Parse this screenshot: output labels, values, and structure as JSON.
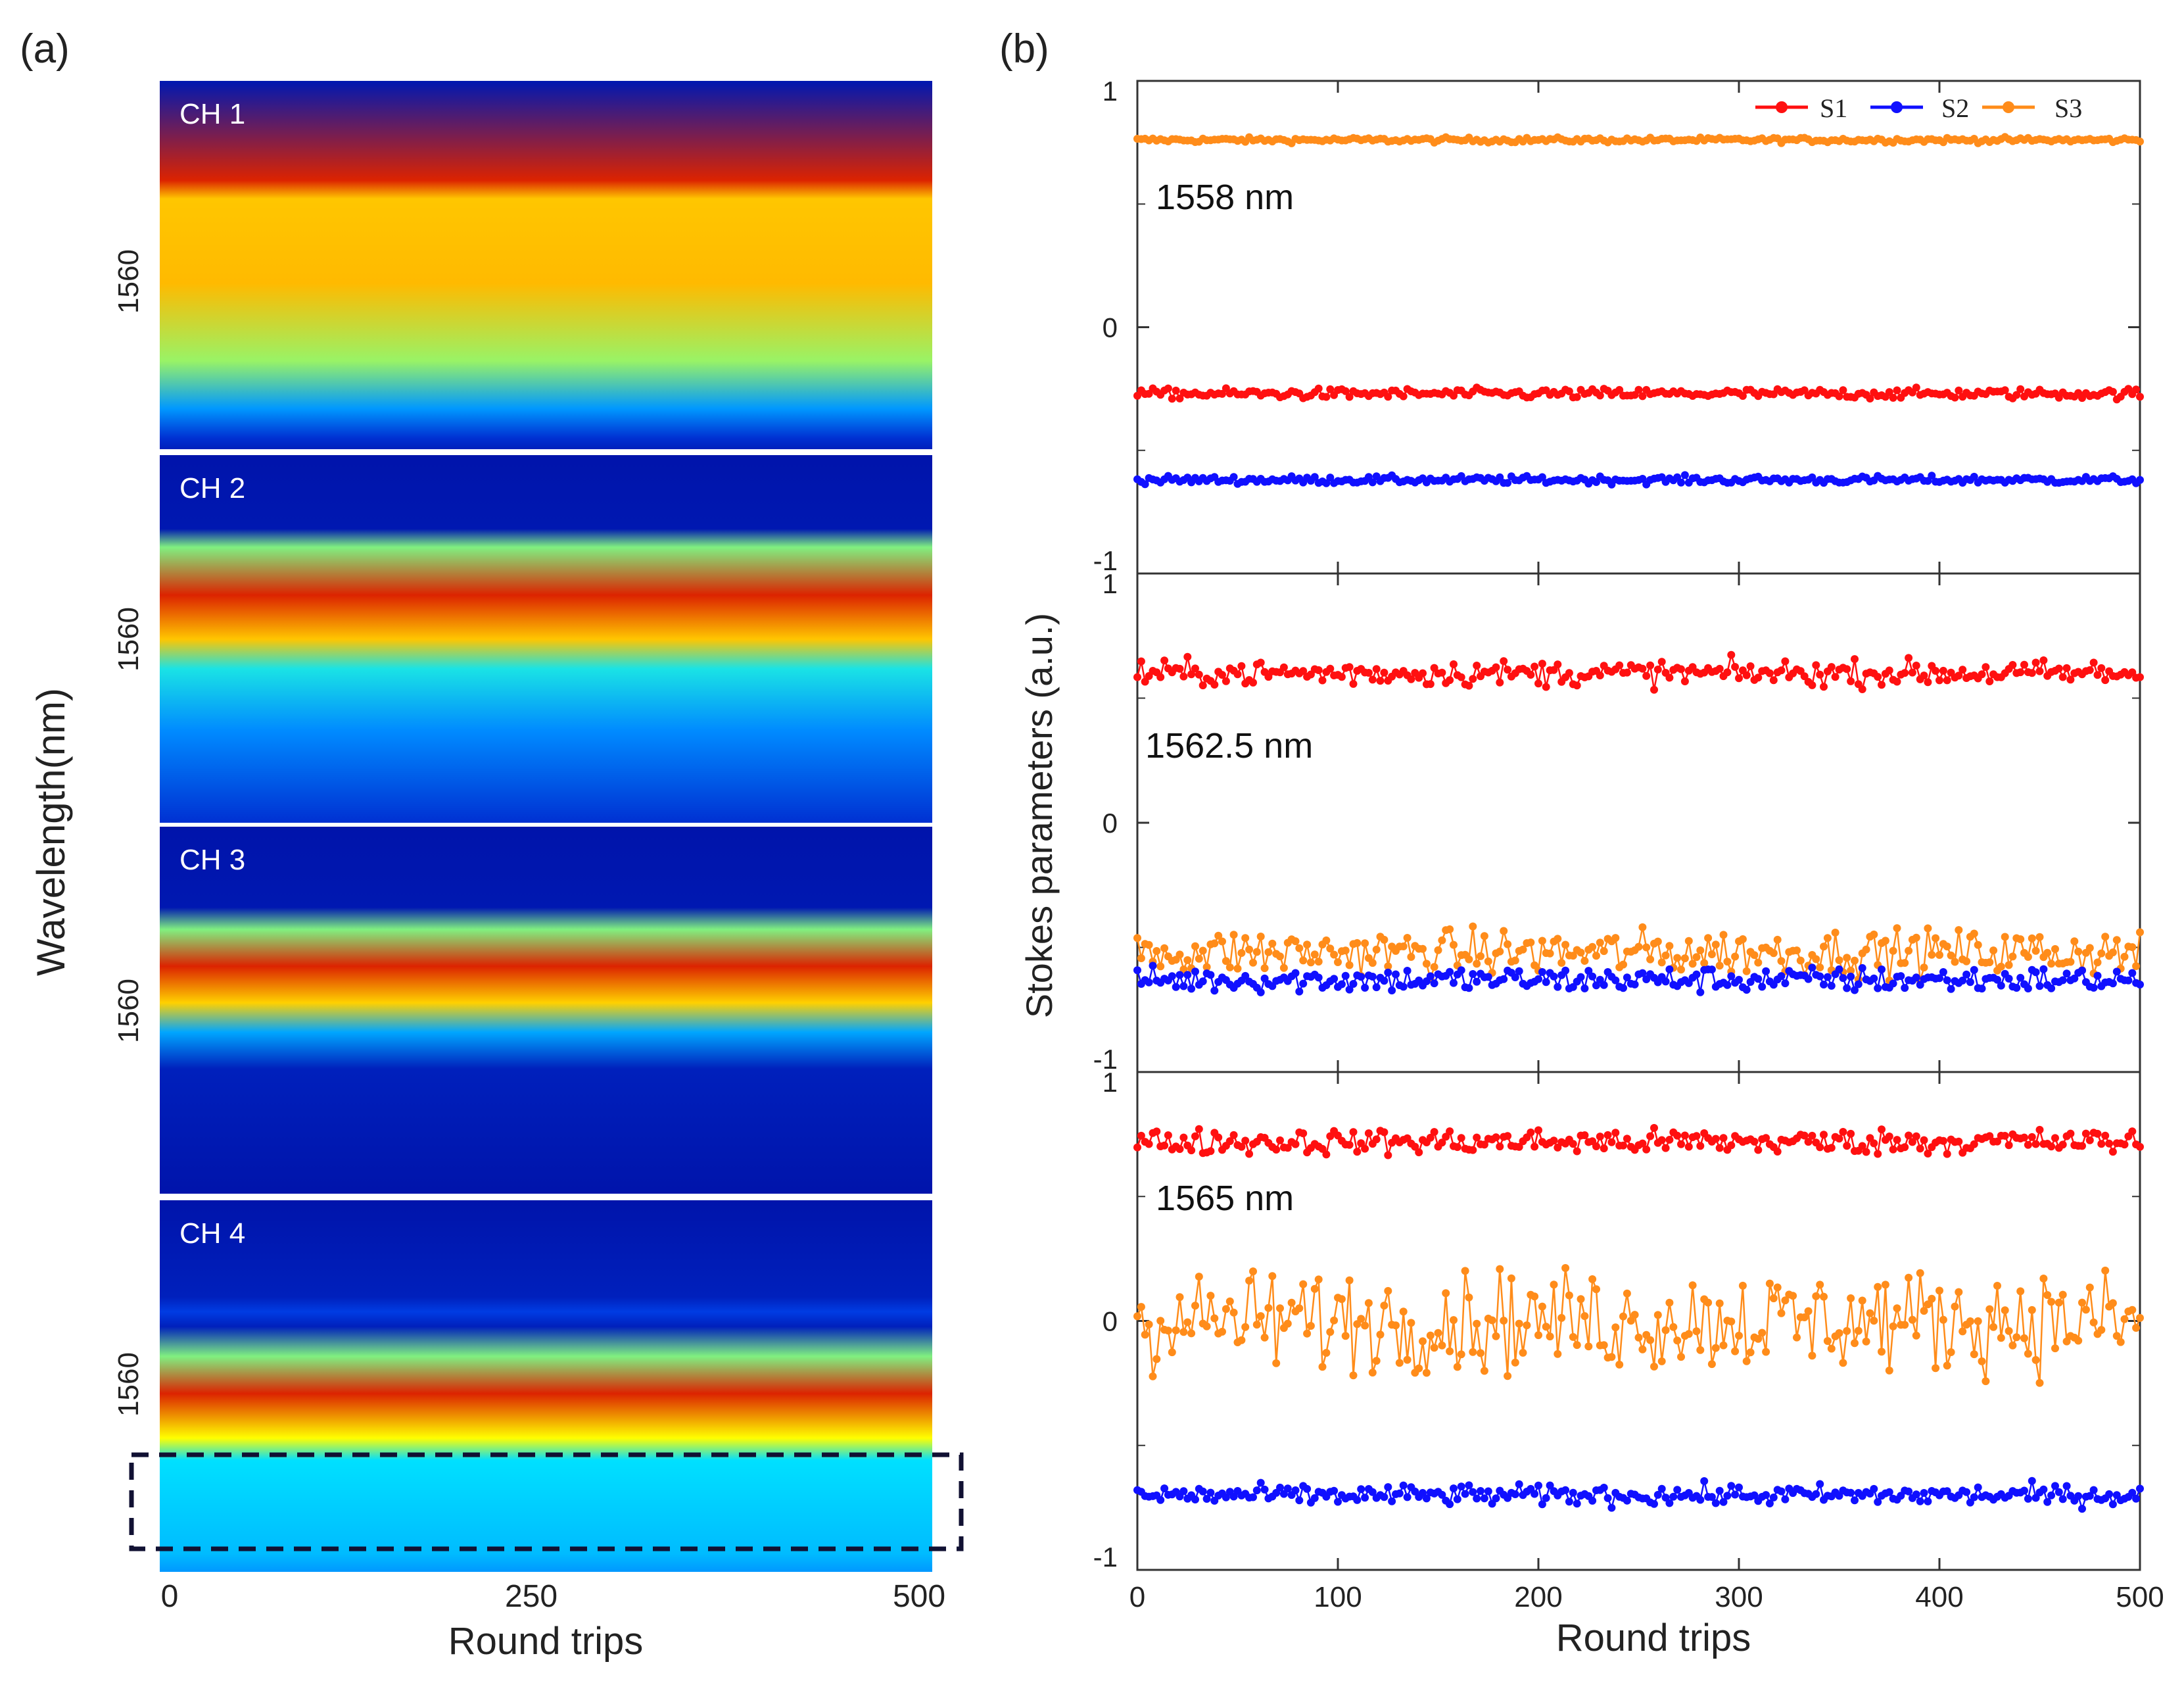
{
  "panel_a": {
    "label": "(a)",
    "ylabel": "Wavelength(nm)",
    "xlabel": "Round trips",
    "x_ticks": [
      "0",
      "250",
      "500"
    ],
    "y_tick": "1560",
    "colormap": [
      "#00008f",
      "#0050ff",
      "#00e0ff",
      "#ffff00",
      "#ff8c00",
      "#d00000"
    ],
    "channels": [
      {
        "name": "CH 1",
        "bands": [
          [
            0.0,
            0.06
          ],
          [
            0.27,
            0.95
          ],
          [
            0.32,
            0.7
          ],
          [
            0.55,
            0.72
          ],
          [
            0.76,
            0.52
          ],
          [
            0.89,
            0.3
          ],
          [
            0.97,
            0.12
          ],
          [
            1.0,
            0.08
          ]
        ]
      },
      {
        "name": "CH 2",
        "bands": [
          [
            0.0,
            0.05
          ],
          [
            0.2,
            0.06
          ],
          [
            0.25,
            0.5
          ],
          [
            0.38,
            0.95
          ],
          [
            0.5,
            0.7
          ],
          [
            0.58,
            0.42
          ],
          [
            0.75,
            0.28
          ],
          [
            1.0,
            0.12
          ]
        ]
      },
      {
        "name": "CH 3",
        "bands": [
          [
            0.0,
            0.05
          ],
          [
            0.22,
            0.06
          ],
          [
            0.28,
            0.5
          ],
          [
            0.38,
            0.95
          ],
          [
            0.48,
            0.68
          ],
          [
            0.56,
            0.32
          ],
          [
            0.66,
            0.08
          ],
          [
            1.0,
            0.05
          ]
        ]
      },
      {
        "name": "CH 4",
        "bands": [
          [
            0.0,
            0.05
          ],
          [
            0.26,
            0.08
          ],
          [
            0.3,
            0.15
          ],
          [
            0.34,
            0.08
          ],
          [
            0.42,
            0.5
          ],
          [
            0.52,
            0.95
          ],
          [
            0.64,
            0.6
          ],
          [
            0.7,
            0.4
          ],
          [
            0.95,
            0.35
          ],
          [
            1.0,
            0.3
          ]
        ]
      }
    ]
  },
  "panel_b": {
    "label": "(b)",
    "ylabel": "Stokes parameters (a.u.)",
    "xlabel": "Round trips",
    "legend": [
      "S1",
      "S2",
      "S3"
    ],
    "colors": {
      "S1": "#ff1010",
      "S2": "#1010ff",
      "S3": "#ff8c1a"
    }
  },
  "chart_data": [
    {
      "type": "heatmap",
      "title": "(a)",
      "xlabel": "Round trips",
      "ylabel": "Wavelength(nm)",
      "x_ticks": [
        0,
        250,
        500
      ],
      "xlim": [
        0,
        500
      ],
      "y_tick_label": "1560",
      "panels": [
        "CH 1",
        "CH 2",
        "CH 3",
        "CH 4"
      ],
      "annotation": "dashed box around lower band of CH 4"
    },
    {
      "type": "scatter",
      "title": "(b)",
      "xlabel": "Round trips",
      "ylabel": "Stokes parameters (a.u.)",
      "xlim": [
        0,
        500
      ],
      "ylim": [
        -1,
        1
      ],
      "x_ticks": [
        0,
        100,
        200,
        300,
        400,
        500
      ],
      "y_ticks": [
        -1,
        0,
        1
      ],
      "panels": [
        {
          "wavelength": "1558 nm",
          "series": [
            {
              "name": "S1",
              "mean": -0.27,
              "spread": 0.02
            },
            {
              "name": "S2",
              "mean": -0.62,
              "spread": 0.015
            },
            {
              "name": "S3",
              "mean": 0.76,
              "spread": 0.01
            }
          ]
        },
        {
          "wavelength": "1562.5 nm",
          "series": [
            {
              "name": "S1",
              "mean": 0.6,
              "spread": 0.05
            },
            {
              "name": "S2",
              "mean": -0.63,
              "spread": 0.05
            },
            {
              "name": "S3",
              "mean": -0.52,
              "spread": 0.09
            }
          ]
        },
        {
          "wavelength": "1565 nm",
          "series": [
            {
              "name": "S1",
              "mean": 0.72,
              "spread": 0.05
            },
            {
              "name": "S2",
              "mean": -0.7,
              "spread": 0.04
            },
            {
              "name": "S3",
              "mean": 0.0,
              "spread": 0.2
            }
          ]
        }
      ]
    }
  ]
}
